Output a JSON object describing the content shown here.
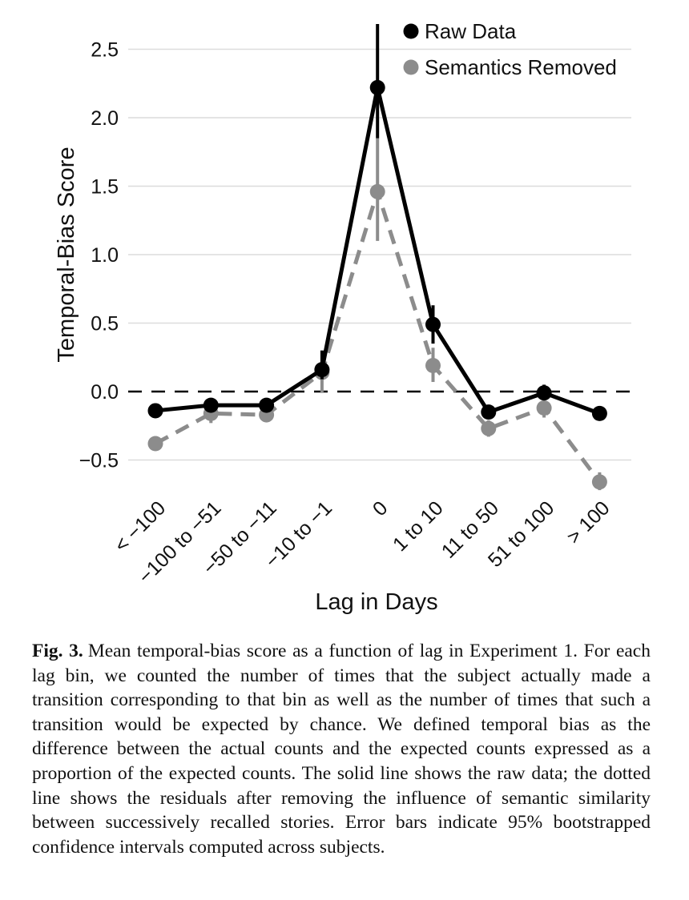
{
  "chart_data": {
    "type": "line",
    "title": "",
    "xlabel": "Lag in Days",
    "ylabel": "Temporal-Bias Score",
    "categories": [
      "< −100",
      "−100 to −51",
      "−50 to −11",
      "−10 to −1",
      "0",
      "1 to 10",
      "11 to 50",
      "51 to 100",
      "> 100"
    ],
    "ylim": [
      -0.75,
      2.65
    ],
    "yticks": [
      -0.5,
      0.0,
      0.5,
      1.0,
      1.5,
      2.0,
      2.5
    ],
    "ytick_labels": [
      "−0.5",
      "0.0",
      "0.5",
      "1.0",
      "1.5",
      "2.0",
      "2.5"
    ],
    "grid": "horizontal",
    "reference_line": 0,
    "legend_position": "top-right",
    "series": [
      {
        "name": "Raw Data",
        "color": "#000000",
        "line_style": "solid",
        "values": [
          -0.14,
          -0.1,
          -0.1,
          0.16,
          2.22,
          0.49,
          -0.15,
          -0.01,
          -0.16
        ],
        "error_low": [
          -0.14,
          -0.14,
          -0.13,
          0.09,
          1.85,
          0.35,
          -0.19,
          -0.05,
          -0.16
        ],
        "error_high": [
          -0.14,
          -0.05,
          -0.06,
          0.3,
          2.68,
          0.63,
          -0.11,
          0.05,
          -0.16
        ]
      },
      {
        "name": "Semantics Removed",
        "color": "#8c8c8c",
        "line_style": "dashed",
        "values": [
          -0.38,
          -0.16,
          -0.17,
          0.14,
          1.46,
          0.19,
          -0.27,
          -0.12,
          -0.66
        ],
        "error_low": [
          -0.38,
          -0.23,
          -0.22,
          -0.01,
          1.1,
          0.07,
          -0.33,
          -0.19,
          -0.72
        ],
        "error_high": [
          -0.38,
          -0.09,
          -0.12,
          0.22,
          1.85,
          0.32,
          -0.21,
          -0.05,
          -0.59
        ]
      }
    ]
  },
  "caption": {
    "label": "Fig. 3.",
    "text": "Mean temporal-bias score as a function of lag in Experiment 1. For each lag bin, we counted the number of times that the subject actually made a transition corresponding to that bin as well as the number of times that such a transition would be expected by chance. We defined temporal bias as the difference between the actual counts and the expected counts expressed as a proportion of the expected counts. The solid line shows the raw data; the dotted line shows the residuals after removing the influence of semantic similarity between successively recalled stories. Error bars indicate 95% bootstrapped confidence intervals computed across subjects."
  }
}
